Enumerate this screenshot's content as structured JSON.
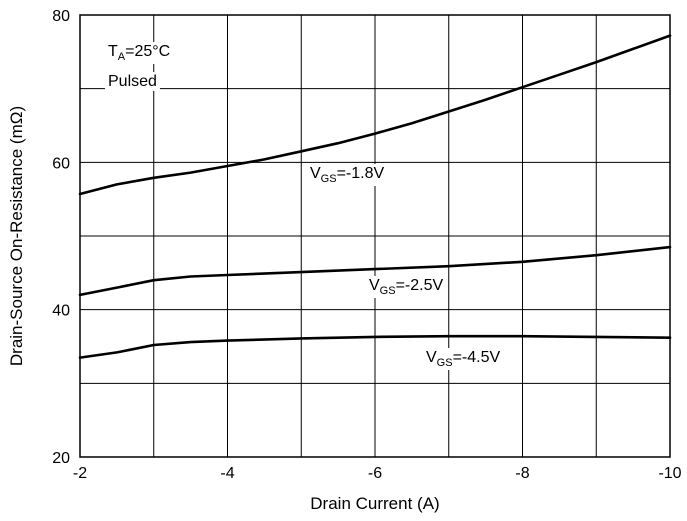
{
  "chart_data": {
    "type": "line",
    "xlabel": "Drain Current (A)",
    "ylabel": "Drain-Source On-Resistance (mΩ)",
    "xlim": [
      -2,
      -10
    ],
    "ylim": [
      20,
      80
    ],
    "x_ticks": [
      -2,
      -4,
      -6,
      -8,
      -10
    ],
    "x_tick_labels": [
      "-2",
      "-4",
      "-6",
      "-8",
      "-10"
    ],
    "x_grid": [
      -2,
      -3,
      -4,
      -5,
      -6,
      -7,
      -8,
      -9,
      -10
    ],
    "y_ticks": [
      20,
      40,
      60,
      80
    ],
    "y_tick_labels": [
      "20",
      "40",
      "60",
      "80"
    ],
    "y_grid": [
      30,
      40,
      50,
      60,
      70
    ],
    "grid": true,
    "series": [
      {
        "name": "VGS=-1.8V",
        "x": [
          -2,
          -2.5,
          -3,
          -3.5,
          -4,
          -4.5,
          -5,
          -5.5,
          -6,
          -6.5,
          -7,
          -7.5,
          -8,
          -8.5,
          -9,
          -9.5,
          -10
        ],
        "y": [
          55.7,
          57.0,
          57.9,
          58.6,
          59.5,
          60.4,
          61.5,
          62.6,
          63.9,
          65.3,
          66.9,
          68.5,
          70.2,
          71.9,
          73.6,
          75.4,
          77.2
        ]
      },
      {
        "name": "VGS=-2.5V",
        "x": [
          -2,
          -2.5,
          -3,
          -3.5,
          -4,
          -5,
          -6,
          -7,
          -8,
          -9,
          -10
        ],
        "y": [
          42.0,
          43.0,
          44.0,
          44.5,
          44.7,
          45.1,
          45.5,
          45.9,
          46.5,
          47.4,
          48.5
        ]
      },
      {
        "name": "VGS=-4.5V",
        "x": [
          -2,
          -2.5,
          -3,
          -3.5,
          -4,
          -5,
          -6,
          -7,
          -8,
          -9,
          -10
        ],
        "y": [
          33.5,
          34.2,
          35.2,
          35.6,
          35.8,
          36.1,
          36.3,
          36.4,
          36.4,
          36.3,
          36.2
        ]
      }
    ],
    "annotations": {
      "ta_main": "T",
      "ta_sub": "A",
      "ta_rest": "=25°C",
      "pulsed": "Pulsed",
      "vgs": [
        {
          "v": "V",
          "sub": "GS",
          "rest": "=-1.8V"
        },
        {
          "v": "V",
          "sub": "GS",
          "rest": "=-2.5V"
        },
        {
          "v": "V",
          "sub": "GS",
          "rest": "=-4.5V"
        }
      ]
    }
  }
}
